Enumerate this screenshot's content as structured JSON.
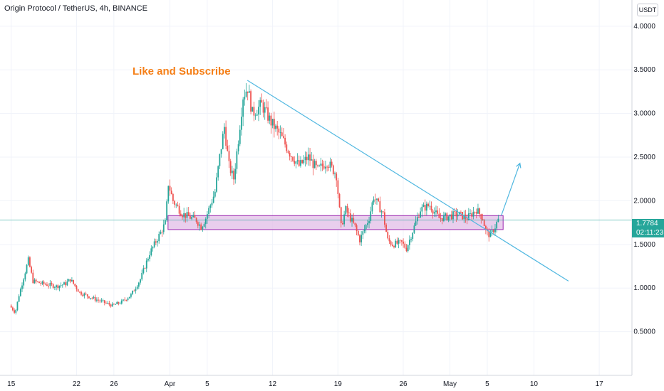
{
  "header": {
    "title": "Origin Protocol / TetherUS, 4h, BINANCE",
    "currency": "USDT"
  },
  "annotation": "Like and Subscribe",
  "price_label": {
    "price": "1.7784",
    "countdown": "02:11:23"
  },
  "colors": {
    "up": "#26a69a",
    "down": "#ef5350",
    "trendline": "#4fb7e0",
    "zone_fill": "#e1bee7",
    "zone_stroke": "#9c27b0",
    "annotation": "#f57f17"
  },
  "chart_data": {
    "type": "candlestick",
    "title": "Origin Protocol / TetherUS, 4h, BINANCE",
    "y_axis": {
      "ticks": [
        "4.0000",
        "3.5000",
        "3.0000",
        "2.5000",
        "2.0000",
        "1.5000",
        "1.0000",
        "0.5000"
      ],
      "tick_values": [
        4.0,
        3.5,
        3.0,
        2.5,
        2.0,
        1.5,
        1.0,
        0.5
      ],
      "range": [
        0.0,
        4.3
      ]
    },
    "x_axis": {
      "tick_labels": [
        "15",
        "22",
        "26",
        "Apr",
        "5",
        "12",
        "19",
        "26",
        "May",
        "5",
        "10",
        "17"
      ],
      "tick_days": [
        0,
        7,
        11,
        17,
        21,
        28,
        35,
        42,
        47,
        51,
        56,
        63
      ],
      "range_days": [
        -1.2,
        66.5
      ]
    },
    "price_path": [
      [
        0,
        0.8
      ],
      [
        0.6,
        0.72
      ],
      [
        1.0,
        0.92
      ],
      [
        1.5,
        1.12
      ],
      [
        2.0,
        1.32
      ],
      [
        2.5,
        1.08
      ],
      [
        3.5,
        1.05
      ],
      [
        5.0,
        1.02
      ],
      [
        6.0,
        1.05
      ],
      [
        6.5,
        1.1
      ],
      [
        7.5,
        0.95
      ],
      [
        9.0,
        0.88
      ],
      [
        10.0,
        0.84
      ],
      [
        11.0,
        0.8
      ],
      [
        12.0,
        0.84
      ],
      [
        13.0,
        0.92
      ],
      [
        14.0,
        1.1
      ],
      [
        15.0,
        1.4
      ],
      [
        16.0,
        1.6
      ],
      [
        16.7,
        1.75
      ],
      [
        17.0,
        2.2
      ],
      [
        17.5,
        2.0
      ],
      [
        18.5,
        1.85
      ],
      [
        20.0,
        1.78
      ],
      [
        20.5,
        1.7
      ],
      [
        21.0,
        1.8
      ],
      [
        22.0,
        2.1
      ],
      [
        22.5,
        2.5
      ],
      [
        23.0,
        2.85
      ],
      [
        23.5,
        2.4
      ],
      [
        24.0,
        2.25
      ],
      [
        24.5,
        2.7
      ],
      [
        25.0,
        3.2
      ],
      [
        25.5,
        3.3
      ],
      [
        26.0,
        3.0
      ],
      [
        27.0,
        3.1
      ],
      [
        28.0,
        2.9
      ],
      [
        29.0,
        2.75
      ],
      [
        30.0,
        2.55
      ],
      [
        31.0,
        2.4
      ],
      [
        32.0,
        2.5
      ],
      [
        33.0,
        2.35
      ],
      [
        34.0,
        2.45
      ],
      [
        35.0,
        2.3
      ],
      [
        35.5,
        1.7
      ],
      [
        36.0,
        1.9
      ],
      [
        37.0,
        1.7
      ],
      [
        37.5,
        1.55
      ],
      [
        38.5,
        1.8
      ],
      [
        39.0,
        2.05
      ],
      [
        39.5,
        1.95
      ],
      [
        40.0,
        1.85
      ],
      [
        40.5,
        1.55
      ],
      [
        41.0,
        1.5
      ],
      [
        42.0,
        1.52
      ],
      [
        42.5,
        1.45
      ],
      [
        43.0,
        1.6
      ],
      [
        43.5,
        1.75
      ],
      [
        44.0,
        1.9
      ],
      [
        45.0,
        1.95
      ],
      [
        46.0,
        1.8
      ],
      [
        47.0,
        1.82
      ],
      [
        48.0,
        1.85
      ],
      [
        49.0,
        1.8
      ],
      [
        50.0,
        1.9
      ],
      [
        50.7,
        1.8
      ],
      [
        51.0,
        1.65
      ],
      [
        51.5,
        1.6
      ],
      [
        52.0,
        1.7
      ],
      [
        52.3,
        1.78
      ]
    ],
    "candle_step_days": 0.1667,
    "zone": {
      "day_start": 16.8,
      "day_end": 52.7,
      "price_top": 1.83,
      "price_bottom": 1.67
    },
    "trendline": {
      "start": [
        25.3,
        3.38
      ],
      "end": [
        59.7,
        1.08
      ]
    },
    "arrow": {
      "start": [
        52.5,
        1.83
      ],
      "end": [
        54.5,
        2.43
      ]
    },
    "last_price": 1.7784
  }
}
